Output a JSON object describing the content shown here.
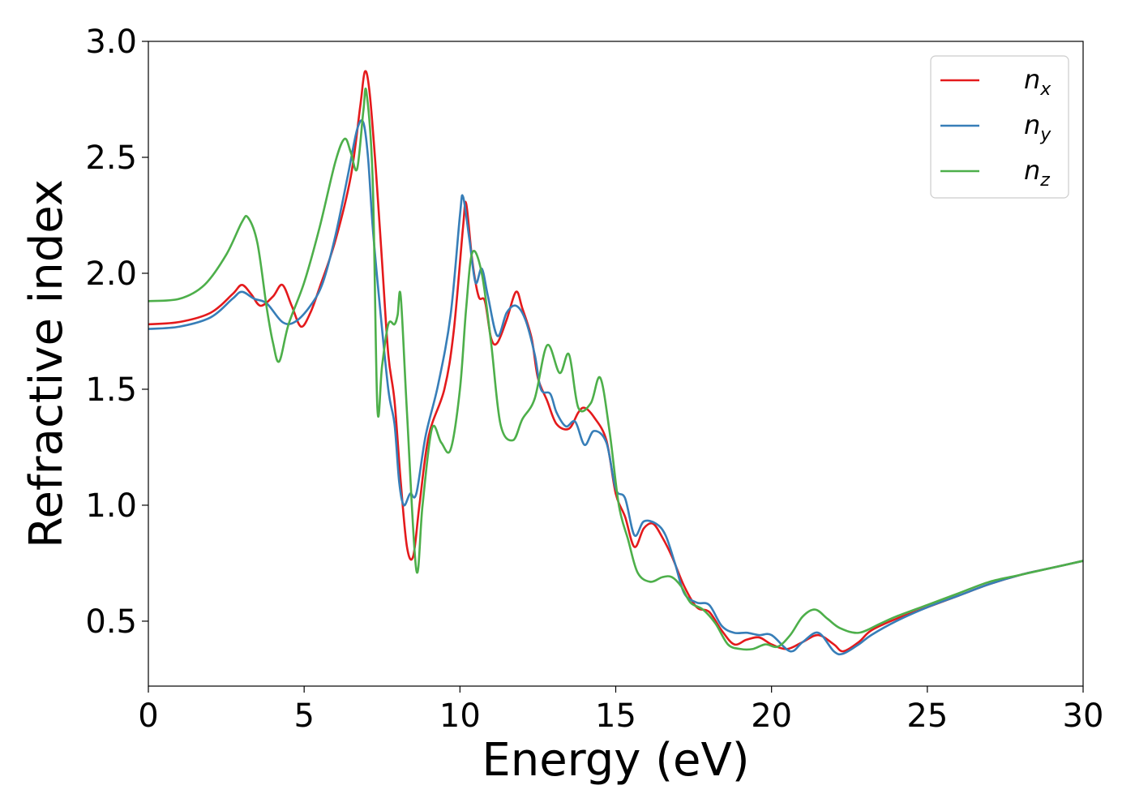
{
  "chart_data": {
    "type": "line",
    "xlabel": "Energy (eV)",
    "ylabel": "Refractive index",
    "xlim": [
      0,
      30
    ],
    "ylim": [
      0.22,
      3.0
    ],
    "xticks": [
      0,
      5,
      10,
      15,
      20,
      25,
      30
    ],
    "xtick_labels": [
      "0",
      "5",
      "10",
      "15",
      "20",
      "25",
      "30"
    ],
    "yticks": [
      0.5,
      1.0,
      1.5,
      2.0,
      2.5,
      3.0
    ],
    "ytick_labels": [
      "0.5",
      "1.0",
      "1.5",
      "2.0",
      "2.5",
      "3.0"
    ],
    "grid": false,
    "legend_position": "top-right",
    "series": [
      {
        "name": "n_x",
        "legend_base": "n",
        "legend_sub": "x",
        "color": "#e41a1c",
        "points": [
          [
            0,
            1.78
          ],
          [
            1,
            1.79
          ],
          [
            2,
            1.83
          ],
          [
            2.7,
            1.91
          ],
          [
            3.0,
            1.95
          ],
          [
            3.3,
            1.91
          ],
          [
            3.6,
            1.86
          ],
          [
            4.0,
            1.9
          ],
          [
            4.3,
            1.95
          ],
          [
            4.6,
            1.86
          ],
          [
            4.9,
            1.77
          ],
          [
            5.2,
            1.83
          ],
          [
            5.5,
            1.94
          ],
          [
            6.0,
            2.14
          ],
          [
            6.5,
            2.42
          ],
          [
            6.8,
            2.72
          ],
          [
            6.95,
            2.87
          ],
          [
            7.1,
            2.78
          ],
          [
            7.3,
            2.45
          ],
          [
            7.5,
            2.05
          ],
          [
            7.7,
            1.65
          ],
          [
            7.9,
            1.45
          ],
          [
            8.1,
            1.1
          ],
          [
            8.3,
            0.82
          ],
          [
            8.5,
            0.78
          ],
          [
            8.7,
            1.0
          ],
          [
            9.0,
            1.3
          ],
          [
            9.5,
            1.5
          ],
          [
            9.8,
            1.75
          ],
          [
            10.1,
            2.2
          ],
          [
            10.2,
            2.3
          ],
          [
            10.4,
            2.05
          ],
          [
            10.6,
            1.9
          ],
          [
            10.8,
            1.88
          ],
          [
            11.0,
            1.72
          ],
          [
            11.2,
            1.7
          ],
          [
            11.5,
            1.8
          ],
          [
            11.8,
            1.92
          ],
          [
            12.0,
            1.85
          ],
          [
            12.3,
            1.72
          ],
          [
            12.5,
            1.55
          ],
          [
            12.8,
            1.45
          ],
          [
            13.1,
            1.35
          ],
          [
            13.5,
            1.33
          ],
          [
            13.8,
            1.4
          ],
          [
            14.0,
            1.42
          ],
          [
            14.3,
            1.38
          ],
          [
            14.7,
            1.28
          ],
          [
            15.0,
            1.05
          ],
          [
            15.3,
            0.95
          ],
          [
            15.6,
            0.82
          ],
          [
            15.9,
            0.9
          ],
          [
            16.2,
            0.92
          ],
          [
            16.5,
            0.86
          ],
          [
            16.8,
            0.78
          ],
          [
            17.2,
            0.65
          ],
          [
            17.6,
            0.56
          ],
          [
            18.0,
            0.54
          ],
          [
            18.4,
            0.46
          ],
          [
            18.8,
            0.4
          ],
          [
            19.2,
            0.42
          ],
          [
            19.6,
            0.43
          ],
          [
            20.0,
            0.4
          ],
          [
            20.5,
            0.38
          ],
          [
            21.0,
            0.41
          ],
          [
            21.5,
            0.44
          ],
          [
            22.0,
            0.4
          ],
          [
            22.3,
            0.37
          ],
          [
            22.8,
            0.41
          ],
          [
            23.2,
            0.46
          ],
          [
            24.0,
            0.51
          ],
          [
            25,
            0.56
          ],
          [
            26,
            0.61
          ],
          [
            27,
            0.66
          ],
          [
            28,
            0.7
          ],
          [
            29,
            0.73
          ],
          [
            30,
            0.76
          ]
        ]
      },
      {
        "name": "n_y",
        "legend_base": "n",
        "legend_sub": "y",
        "color": "#377eb8",
        "points": [
          [
            0,
            1.76
          ],
          [
            1,
            1.77
          ],
          [
            2,
            1.81
          ],
          [
            2.7,
            1.89
          ],
          [
            3.0,
            1.92
          ],
          [
            3.4,
            1.89
          ],
          [
            3.8,
            1.87
          ],
          [
            4.3,
            1.79
          ],
          [
            4.7,
            1.79
          ],
          [
            5.2,
            1.86
          ],
          [
            5.6,
            1.96
          ],
          [
            6.0,
            2.16
          ],
          [
            6.4,
            2.42
          ],
          [
            6.7,
            2.62
          ],
          [
            6.9,
            2.65
          ],
          [
            7.05,
            2.5
          ],
          [
            7.2,
            2.2
          ],
          [
            7.4,
            1.9
          ],
          [
            7.7,
            1.5
          ],
          [
            7.9,
            1.35
          ],
          [
            8.05,
            1.1
          ],
          [
            8.2,
            1.0
          ],
          [
            8.4,
            1.05
          ],
          [
            8.6,
            1.05
          ],
          [
            8.9,
            1.3
          ],
          [
            9.3,
            1.52
          ],
          [
            9.7,
            1.82
          ],
          [
            10.0,
            2.25
          ],
          [
            10.1,
            2.33
          ],
          [
            10.3,
            2.15
          ],
          [
            10.5,
            1.96
          ],
          [
            10.7,
            2.02
          ],
          [
            10.9,
            1.9
          ],
          [
            11.2,
            1.73
          ],
          [
            11.5,
            1.83
          ],
          [
            11.8,
            1.86
          ],
          [
            12.1,
            1.8
          ],
          [
            12.4,
            1.65
          ],
          [
            12.6,
            1.5
          ],
          [
            12.9,
            1.48
          ],
          [
            13.1,
            1.4
          ],
          [
            13.4,
            1.34
          ],
          [
            13.7,
            1.36
          ],
          [
            14.0,
            1.26
          ],
          [
            14.3,
            1.32
          ],
          [
            14.7,
            1.27
          ],
          [
            15.0,
            1.07
          ],
          [
            15.3,
            1.03
          ],
          [
            15.6,
            0.87
          ],
          [
            15.9,
            0.93
          ],
          [
            16.3,
            0.92
          ],
          [
            16.6,
            0.87
          ],
          [
            16.9,
            0.75
          ],
          [
            17.2,
            0.62
          ],
          [
            17.6,
            0.58
          ],
          [
            18.0,
            0.57
          ],
          [
            18.4,
            0.48
          ],
          [
            18.8,
            0.45
          ],
          [
            19.2,
            0.45
          ],
          [
            19.6,
            0.44
          ],
          [
            20.0,
            0.44
          ],
          [
            20.6,
            0.37
          ],
          [
            21.0,
            0.41
          ],
          [
            21.5,
            0.45
          ],
          [
            22.0,
            0.37
          ],
          [
            22.3,
            0.36
          ],
          [
            22.8,
            0.4
          ],
          [
            23.2,
            0.44
          ],
          [
            24.0,
            0.5
          ],
          [
            25,
            0.56
          ],
          [
            26,
            0.61
          ],
          [
            27,
            0.66
          ],
          [
            28,
            0.7
          ],
          [
            29,
            0.73
          ],
          [
            30,
            0.76
          ]
        ]
      },
      {
        "name": "n_z",
        "legend_base": "n",
        "legend_sub": "z",
        "color": "#4daf4a",
        "points": [
          [
            0,
            1.88
          ],
          [
            1,
            1.89
          ],
          [
            1.8,
            1.95
          ],
          [
            2.5,
            2.08
          ],
          [
            3.0,
            2.22
          ],
          [
            3.2,
            2.24
          ],
          [
            3.5,
            2.13
          ],
          [
            3.8,
            1.85
          ],
          [
            4.0,
            1.7
          ],
          [
            4.2,
            1.62
          ],
          [
            4.5,
            1.78
          ],
          [
            5.0,
            1.96
          ],
          [
            5.5,
            2.2
          ],
          [
            6.0,
            2.48
          ],
          [
            6.3,
            2.58
          ],
          [
            6.5,
            2.52
          ],
          [
            6.7,
            2.45
          ],
          [
            6.9,
            2.7
          ],
          [
            7.0,
            2.78
          ],
          [
            7.2,
            2.4
          ],
          [
            7.35,
            1.42
          ],
          [
            7.5,
            1.6
          ],
          [
            7.7,
            1.78
          ],
          [
            7.9,
            1.78
          ],
          [
            8.0,
            1.82
          ],
          [
            8.1,
            1.9
          ],
          [
            8.3,
            1.4
          ],
          [
            8.6,
            0.72
          ],
          [
            8.8,
            1.0
          ],
          [
            9.1,
            1.33
          ],
          [
            9.4,
            1.27
          ],
          [
            9.7,
            1.24
          ],
          [
            10.0,
            1.5
          ],
          [
            10.2,
            1.85
          ],
          [
            10.4,
            2.09
          ],
          [
            10.7,
            2.0
          ],
          [
            11.0,
            1.7
          ],
          [
            11.3,
            1.35
          ],
          [
            11.7,
            1.28
          ],
          [
            12.0,
            1.37
          ],
          [
            12.4,
            1.46
          ],
          [
            12.8,
            1.69
          ],
          [
            13.2,
            1.57
          ],
          [
            13.5,
            1.65
          ],
          [
            13.8,
            1.42
          ],
          [
            14.2,
            1.44
          ],
          [
            14.5,
            1.55
          ],
          [
            14.8,
            1.32
          ],
          [
            15.1,
            1.0
          ],
          [
            15.4,
            0.85
          ],
          [
            15.7,
            0.71
          ],
          [
            16.1,
            0.67
          ],
          [
            16.5,
            0.69
          ],
          [
            16.8,
            0.69
          ],
          [
            17.1,
            0.65
          ],
          [
            17.4,
            0.58
          ],
          [
            17.8,
            0.55
          ],
          [
            18.2,
            0.49
          ],
          [
            18.6,
            0.4
          ],
          [
            19.0,
            0.38
          ],
          [
            19.4,
            0.38
          ],
          [
            19.8,
            0.4
          ],
          [
            20.2,
            0.39
          ],
          [
            20.6,
            0.44
          ],
          [
            21.0,
            0.52
          ],
          [
            21.4,
            0.55
          ],
          [
            21.8,
            0.51
          ],
          [
            22.2,
            0.47
          ],
          [
            22.8,
            0.45
          ],
          [
            23.5,
            0.49
          ],
          [
            24.0,
            0.52
          ],
          [
            25,
            0.57
          ],
          [
            26,
            0.62
          ],
          [
            27,
            0.67
          ],
          [
            28,
            0.7
          ],
          [
            29,
            0.73
          ],
          [
            30,
            0.76
          ]
        ]
      }
    ]
  }
}
